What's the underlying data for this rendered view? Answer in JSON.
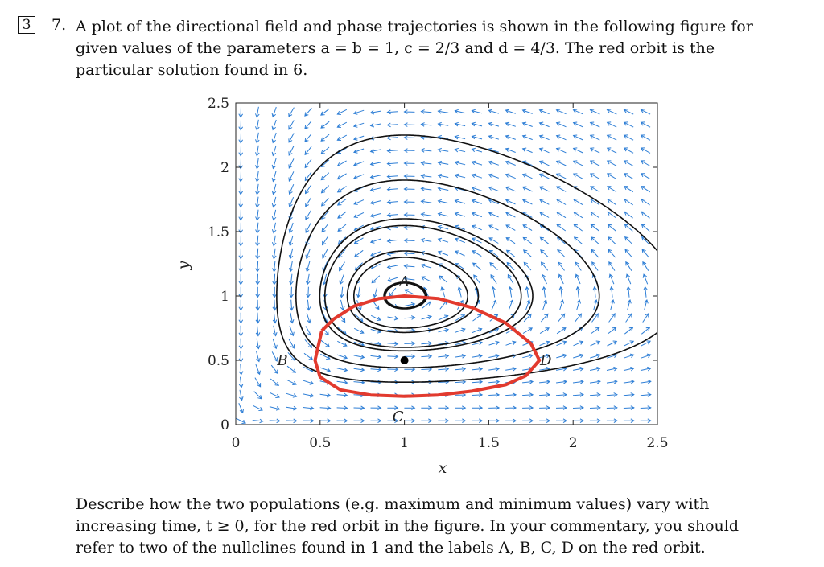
{
  "question": {
    "marks": "3",
    "number": "7.",
    "intro": "A plot of the directional field and phase trajectories is shown in the following figure for given values of the parameters a = b = 1, c = 2/3 and d = 4/3. The red orbit is the particular solution found in 6.",
    "prompt": "Describe how the two populations (e.g. maximum and minimum values) vary with increasing time, t ≥ 0, for the red orbit in the figure. In your commentary, you should refer to two of the nullclines found in 1 and the labels A, B, C, D on the red orbit."
  },
  "figure": {
    "xlabel": "x",
    "ylabel": "y",
    "xlim": [
      0,
      2.5
    ],
    "ylim": [
      0,
      2.5
    ],
    "x_ticks": [
      "0",
      "0.5",
      "1",
      "1.5",
      "2",
      "2.5"
    ],
    "y_ticks": [
      "0",
      "0.5",
      "1",
      "1.5",
      "2",
      "2.5"
    ],
    "colors": {
      "field": "#2f7fd6",
      "trajectory": "#111111",
      "orbit": "#e23a2e",
      "equilibrium": "#000000"
    },
    "equilibrium": [
      1.0,
      0.5
    ],
    "point_labels": [
      {
        "text": "A",
        "x": 1.0,
        "y": 1.0
      },
      {
        "text": "B",
        "x": 0.41,
        "y": 0.5
      },
      {
        "text": "C",
        "x": 1.0,
        "y": 0.2
      },
      {
        "text": "D",
        "x": 1.8,
        "y": 0.5
      }
    ]
  },
  "chart_data": {
    "type": "line",
    "title": "",
    "xlabel": "x",
    "ylabel": "y",
    "xlim": [
      0,
      2.5
    ],
    "ylim": [
      0,
      2.5
    ],
    "grid": false,
    "series": [
      {
        "name": "",
        "x": [
          0.51,
          0.58,
          0.7,
          0.85,
          1.0,
          1.2,
          1.4,
          1.6,
          1.75,
          1.8,
          1.72,
          1.6,
          1.4,
          1.2,
          1.0,
          0.8,
          0.62,
          0.5,
          0.47,
          0.51
        ],
        "y": [
          0.73,
          0.82,
          0.92,
          0.98,
          1.0,
          0.98,
          0.91,
          0.79,
          0.63,
          0.5,
          0.38,
          0.31,
          0.26,
          0.23,
          0.22,
          0.23,
          0.27,
          0.37,
          0.5,
          0.73
        ]
      }
    ]
  }
}
